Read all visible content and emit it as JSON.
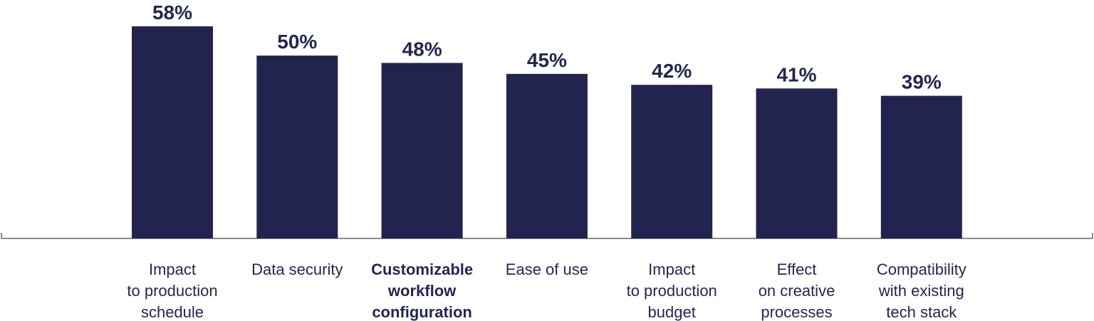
{
  "colors": {
    "bar": "#22244f",
    "text": "#232750",
    "axis": "#666666",
    "background": "#ffffff"
  },
  "chart_data": {
    "type": "bar",
    "title": "",
    "xlabel": "",
    "ylabel": "",
    "ylim": [
      0,
      58
    ],
    "grid": false,
    "categories": [
      "Impact to production schedule",
      "Data security",
      "Customizable workflow configuration",
      "Ease of use",
      "Impact to production budget",
      "Effect on creative processes",
      "Compatibility with existing tech stack"
    ],
    "category_label_lines": [
      [
        "Impact",
        "to production",
        "schedule"
      ],
      [
        "Data security"
      ],
      [
        "Customizable",
        "workflow",
        "configuration"
      ],
      [
        "Ease of use"
      ],
      [
        "Impact",
        "to production",
        "budget"
      ],
      [
        "Effect",
        "on creative",
        "processes"
      ],
      [
        "Compatibility",
        "with existing",
        "tech stack"
      ]
    ],
    "values": [
      58,
      50,
      48,
      45,
      42,
      41,
      39
    ],
    "value_labels": [
      "58%",
      "50%",
      "48%",
      "45%",
      "42%",
      "41%",
      "39%"
    ]
  }
}
